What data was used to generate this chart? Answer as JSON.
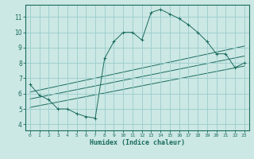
{
  "title": "",
  "xlabel": "Humidex (Indice chaleur)",
  "ylabel": "",
  "bg_color": "#cce8e4",
  "grid_color": "#99cccc",
  "line_color": "#1a6b5e",
  "x_ticks": [
    0,
    1,
    2,
    3,
    4,
    5,
    6,
    7,
    8,
    9,
    10,
    11,
    12,
    13,
    14,
    15,
    16,
    17,
    18,
    19,
    20,
    21,
    22,
    23
  ],
  "y_ticks": [
    4,
    5,
    6,
    7,
    8,
    9,
    10,
    11
  ],
  "xlim": [
    -0.5,
    23.5
  ],
  "ylim": [
    3.6,
    11.8
  ],
  "main_line": {
    "x": [
      0,
      1,
      2,
      3,
      4,
      5,
      6,
      7,
      8,
      9,
      10,
      11,
      12,
      13,
      14,
      15,
      16,
      17,
      18,
      19,
      20,
      21,
      22,
      23
    ],
    "y": [
      6.6,
      5.9,
      5.6,
      5.0,
      5.0,
      4.7,
      4.5,
      4.4,
      8.3,
      9.4,
      10.0,
      10.0,
      9.5,
      11.3,
      11.5,
      11.2,
      10.9,
      10.5,
      10.0,
      9.4,
      8.6,
      8.6,
      7.7,
      8.0
    ]
  },
  "reg_line1": {
    "x": [
      0,
      23
    ],
    "y": [
      6.1,
      9.1
    ]
  },
  "reg_line2": {
    "x": [
      0,
      23
    ],
    "y": [
      5.65,
      8.45
    ]
  },
  "reg_line3": {
    "x": [
      0,
      23
    ],
    "y": [
      5.1,
      7.8
    ]
  }
}
